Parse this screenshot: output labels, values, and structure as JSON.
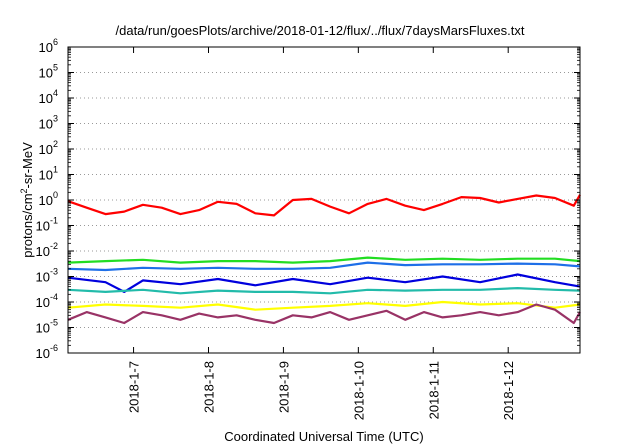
{
  "chart_data": {
    "type": "line",
    "title": "/data/run/goesPlots/archive/2018-01-12/flux/../flux/7daysMarsFluxes.txt",
    "xlabel": "Coordinated Universal Time (UTC)",
    "ylabel": "protons/cm2-sr-MeV",
    "ylabel_parts": {
      "pre": "protons/cm",
      "sup": "2",
      "post": "-sr-MeV"
    },
    "y_scale": "log",
    "ylim": [
      1e-06,
      1000000.0
    ],
    "y_ticks": [
      {
        "value": 1e-06,
        "base": "10",
        "exp": "-6"
      },
      {
        "value": 1e-05,
        "base": "10",
        "exp": "-5"
      },
      {
        "value": 0.0001,
        "base": "10",
        "exp": "-4"
      },
      {
        "value": 0.001,
        "base": "10",
        "exp": "-3"
      },
      {
        "value": 0.01,
        "base": "10",
        "exp": "-2"
      },
      {
        "value": 0.1,
        "base": "10",
        "exp": "-1"
      },
      {
        "value": 1,
        "base": "10",
        "exp": "0"
      },
      {
        "value": 10.0,
        "base": "10",
        "exp": "1"
      },
      {
        "value": 100.0,
        "base": "10",
        "exp": "2"
      },
      {
        "value": 1000.0,
        "base": "10",
        "exp": "3"
      },
      {
        "value": 10000.0,
        "base": "10",
        "exp": "4"
      },
      {
        "value": 100000.0,
        "base": "10",
        "exp": "5"
      },
      {
        "value": 1000000.0,
        "base": "10",
        "exp": "6"
      }
    ],
    "xlim": [
      "2018-01-06T03:00",
      "2018-01-12T23:00"
    ],
    "x_ticks": [
      "2018-1-7",
      "2018-1-8",
      "2018-1-9",
      "2018-1-10",
      "2018-1-11",
      "2018-1-12"
    ],
    "x_tick_values": [
      "2018-01-07",
      "2018-01-08",
      "2018-01-09",
      "2018-01-10",
      "2018-01-11",
      "2018-01-12"
    ],
    "grid": "horizontal dotted",
    "series": [
      {
        "color": "#ff0000",
        "x": [
          "2018-01-06T03:00",
          "2018-01-06T09:00",
          "2018-01-06T15:00",
          "2018-01-06T21:00",
          "2018-01-07T03:00",
          "2018-01-07T09:00",
          "2018-01-07T15:00",
          "2018-01-07T21:00",
          "2018-01-08T03:00",
          "2018-01-08T09:00",
          "2018-01-08T15:00",
          "2018-01-08T21:00",
          "2018-01-09T03:00",
          "2018-01-09T09:00",
          "2018-01-09T15:00",
          "2018-01-09T21:00",
          "2018-01-10T03:00",
          "2018-01-10T09:00",
          "2018-01-10T15:00",
          "2018-01-10T21:00",
          "2018-01-11T03:00",
          "2018-01-11T09:00",
          "2018-01-11T15:00",
          "2018-01-11T21:00",
          "2018-01-12T03:00",
          "2018-01-12T09:00",
          "2018-01-12T15:00",
          "2018-01-12T21:00",
          "2018-01-12T23:00"
        ],
        "values": [
          0.9,
          0.5,
          0.28,
          0.35,
          0.65,
          0.5,
          0.28,
          0.4,
          0.85,
          0.7,
          0.3,
          0.25,
          1.0,
          1.1,
          0.55,
          0.3,
          0.7,
          1.1,
          0.6,
          0.4,
          0.7,
          1.3,
          1.2,
          0.8,
          1.1,
          1.5,
          1.2,
          0.6,
          1.6
        ]
      },
      {
        "color": "#22dd22",
        "x": [
          "2018-01-06T03:00",
          "2018-01-06T15:00",
          "2018-01-07T03:00",
          "2018-01-07T15:00",
          "2018-01-08T03:00",
          "2018-01-08T15:00",
          "2018-01-09T03:00",
          "2018-01-09T15:00",
          "2018-01-10T03:00",
          "2018-01-10T15:00",
          "2018-01-11T03:00",
          "2018-01-11T15:00",
          "2018-01-12T03:00",
          "2018-01-12T15:00",
          "2018-01-12T23:00"
        ],
        "values": [
          0.0035,
          0.004,
          0.0045,
          0.0035,
          0.004,
          0.004,
          0.0035,
          0.004,
          0.0055,
          0.0045,
          0.005,
          0.0045,
          0.005,
          0.005,
          0.004
        ]
      },
      {
        "color": "#1e6fe8",
        "x": [
          "2018-01-06T03:00",
          "2018-01-06T15:00",
          "2018-01-07T03:00",
          "2018-01-07T15:00",
          "2018-01-08T03:00",
          "2018-01-08T15:00",
          "2018-01-09T03:00",
          "2018-01-09T15:00",
          "2018-01-10T03:00",
          "2018-01-10T15:00",
          "2018-01-11T03:00",
          "2018-01-11T15:00",
          "2018-01-12T03:00",
          "2018-01-12T15:00",
          "2018-01-12T23:00"
        ],
        "values": [
          0.002,
          0.0018,
          0.0022,
          0.002,
          0.0022,
          0.002,
          0.002,
          0.0022,
          0.0035,
          0.0028,
          0.003,
          0.003,
          0.0032,
          0.003,
          0.0025
        ]
      },
      {
        "color": "#0000dd",
        "x": [
          "2018-01-06T03:00",
          "2018-01-06T15:00",
          "2018-01-06T21:00",
          "2018-01-07T03:00",
          "2018-01-07T15:00",
          "2018-01-08T03:00",
          "2018-01-08T15:00",
          "2018-01-09T03:00",
          "2018-01-09T15:00",
          "2018-01-10T03:00",
          "2018-01-10T15:00",
          "2018-01-11T03:00",
          "2018-01-11T15:00",
          "2018-01-12T03:00",
          "2018-01-12T15:00",
          "2018-01-12T23:00"
        ],
        "values": [
          0.0009,
          0.0006,
          0.00025,
          0.0007,
          0.0005,
          0.0008,
          0.00045,
          0.0008,
          0.0005,
          0.0009,
          0.0006,
          0.001,
          0.0006,
          0.0012,
          0.0006,
          0.0004
        ]
      },
      {
        "color": "#22bbaa",
        "x": [
          "2018-01-06T03:00",
          "2018-01-06T15:00",
          "2018-01-07T03:00",
          "2018-01-07T15:00",
          "2018-01-08T03:00",
          "2018-01-08T15:00",
          "2018-01-09T03:00",
          "2018-01-09T15:00",
          "2018-01-10T03:00",
          "2018-01-10T15:00",
          "2018-01-11T03:00",
          "2018-01-11T15:00",
          "2018-01-12T03:00",
          "2018-01-12T15:00",
          "2018-01-12T23:00"
        ],
        "values": [
          0.0003,
          0.00025,
          0.0003,
          0.00022,
          0.00028,
          0.00025,
          0.00025,
          0.00022,
          0.0003,
          0.00028,
          0.0003,
          0.0003,
          0.00035,
          0.0003,
          0.00028
        ]
      },
      {
        "color": "#ffff00",
        "x": [
          "2018-01-06T03:00",
          "2018-01-06T15:00",
          "2018-01-07T03:00",
          "2018-01-07T15:00",
          "2018-01-08T03:00",
          "2018-01-08T15:00",
          "2018-01-09T03:00",
          "2018-01-09T15:00",
          "2018-01-10T03:00",
          "2018-01-10T15:00",
          "2018-01-11T03:00",
          "2018-01-11T15:00",
          "2018-01-12T03:00",
          "2018-01-12T15:00",
          "2018-01-12T23:00"
        ],
        "values": [
          6e-05,
          8e-05,
          7e-05,
          6e-05,
          8e-05,
          5e-05,
          6e-05,
          7e-05,
          9e-05,
          7e-05,
          0.0001,
          8e-05,
          9e-05,
          6e-05,
          8e-05
        ]
      },
      {
        "color": "#993366",
        "x": [
          "2018-01-06T03:00",
          "2018-01-06T09:00",
          "2018-01-06T15:00",
          "2018-01-06T21:00",
          "2018-01-07T03:00",
          "2018-01-07T09:00",
          "2018-01-07T15:00",
          "2018-01-07T21:00",
          "2018-01-08T03:00",
          "2018-01-08T09:00",
          "2018-01-08T15:00",
          "2018-01-08T21:00",
          "2018-01-09T03:00",
          "2018-01-09T09:00",
          "2018-01-09T15:00",
          "2018-01-09T21:00",
          "2018-01-10T03:00",
          "2018-01-10T09:00",
          "2018-01-10T15:00",
          "2018-01-10T21:00",
          "2018-01-11T03:00",
          "2018-01-11T09:00",
          "2018-01-11T15:00",
          "2018-01-11T21:00",
          "2018-01-12T03:00",
          "2018-01-12T09:00",
          "2018-01-12T15:00",
          "2018-01-12T21:00",
          "2018-01-12T23:00"
        ],
        "values": [
          2e-05,
          4e-05,
          2.5e-05,
          1.5e-05,
          4e-05,
          3e-05,
          2e-05,
          3.5e-05,
          2.5e-05,
          3e-05,
          2e-05,
          1.5e-05,
          3e-05,
          2.5e-05,
          4e-05,
          2e-05,
          3e-05,
          4.5e-05,
          2e-05,
          4e-05,
          2.5e-05,
          3e-05,
          4e-05,
          3e-05,
          4e-05,
          8e-05,
          5e-05,
          1.5e-05,
          4e-05
        ]
      }
    ]
  }
}
